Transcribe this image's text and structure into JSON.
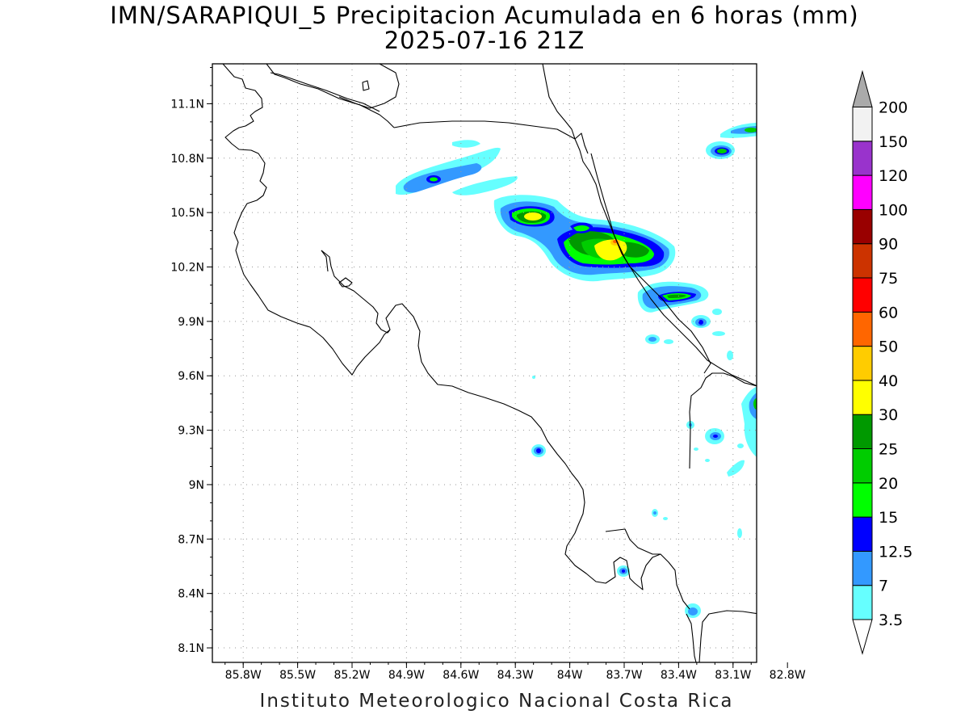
{
  "header": {
    "title": "IMN/SARAPIQUI_5 Precipitacion Acumulada en 6 horas (mm)",
    "datetime": "2025-07-16 21Z"
  },
  "footer": {
    "credit": "Instituto Meteorologico Nacional Costa Rica"
  },
  "map": {
    "lat_labels": [
      "11.1N",
      "10.8N",
      "10.5N",
      "10.2N",
      "9.9N",
      "9.6N",
      "9.3N",
      "9N",
      "8.7N",
      "8.4N",
      "8.1N"
    ],
    "lat_values": [
      11.1,
      10.8,
      10.5,
      10.2,
      9.9,
      9.6,
      9.3,
      9.0,
      8.7,
      8.4,
      8.1
    ],
    "lon_labels": [
      "85.8W",
      "85.5W",
      "85.2W",
      "84.9W",
      "84.6W",
      "84.3W",
      "84W",
      "83.7W",
      "83.4W",
      "83.1W",
      "82.8W"
    ],
    "lon_values": [
      -85.8,
      -85.5,
      -85.2,
      -84.9,
      -84.6,
      -84.3,
      -84.0,
      -83.7,
      -83.4,
      -83.1,
      -82.8
    ],
    "lon_range": [
      -85.97,
      -82.97
    ],
    "lat_range": [
      8.02,
      11.32
    ],
    "grid": "dotted"
  },
  "colorbar": {
    "levels": [
      "3.5",
      "7",
      "12.5",
      "15",
      "20",
      "25",
      "30",
      "40",
      "50",
      "60",
      "75",
      "90",
      "100",
      "120",
      "150",
      "200"
    ],
    "colors": [
      "#66ffff",
      "#3399ff",
      "#0000ff",
      "#00ff00",
      "#00cc00",
      "#009900",
      "#ffff00",
      "#ffcc00",
      "#ff6600",
      "#ff0000",
      "#cc3300",
      "#990000",
      "#ff00ff",
      "#9933cc",
      "#f2f2f2",
      "#aaaaaa"
    ]
  }
}
